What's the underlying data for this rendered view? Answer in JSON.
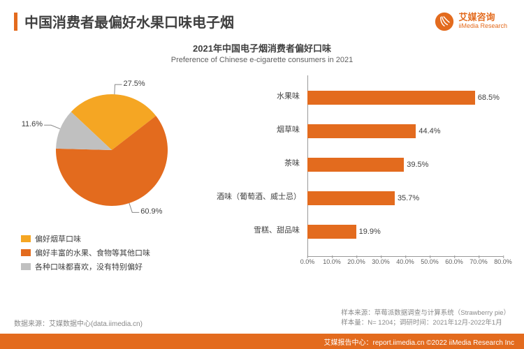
{
  "colors": {
    "accent": "#e36b1e",
    "pie_slices": [
      "#f5a623",
      "#e36b1e",
      "#c0c0c0"
    ],
    "bar_fill": "#e36b1e",
    "text": "#404040",
    "muted": "#888888"
  },
  "header": {
    "title": "中国消费者最偏好水果口味电子烟",
    "brand_cn": "艾媒咨询",
    "brand_en": "iiMedia Research"
  },
  "chart_title": {
    "cn": "2021年中国电子烟消费者偏好口味",
    "en": "Preference of Chinese e-cigarette consumers in 2021"
  },
  "pie": {
    "type": "pie",
    "slices": [
      {
        "label": "偏好烟草口味",
        "value": 27.5,
        "color": "#f5a623"
      },
      {
        "label": "偏好丰富的水果、食物等其他口味",
        "value": 60.9,
        "color": "#e36b1e"
      },
      {
        "label": "各种口味都喜欢，没有特别偏好",
        "value": 11.6,
        "color": "#c0c0c0"
      }
    ],
    "label_fontsize": 11
  },
  "bars": {
    "type": "bar_horizontal",
    "xmax": 80,
    "xtick_step": 10,
    "xtick_suffix": "%",
    "items": [
      {
        "category": "水果味",
        "value": 68.5
      },
      {
        "category": "烟草味",
        "value": 44.4
      },
      {
        "category": "茶味",
        "value": 39.5
      },
      {
        "category": "酒味（葡萄酒、威士忌）",
        "value": 35.7
      },
      {
        "category": "雪糕、甜品味",
        "value": 19.9
      }
    ],
    "bar_color": "#e36b1e",
    "label_fontsize": 11
  },
  "footer": {
    "source_left": "数据来源：艾媒数据中心(data.iimedia.cn)",
    "source_right_1": "样本来源：草莓派数据调查与计算系统（Strawberry pie）",
    "source_right_2": "样本量：N= 1204；调研时间：2021年12月-2022年1月",
    "bottom": "艾媒报告中心：report.iimedia.cn   ©2022 iiMedia Research  Inc"
  }
}
